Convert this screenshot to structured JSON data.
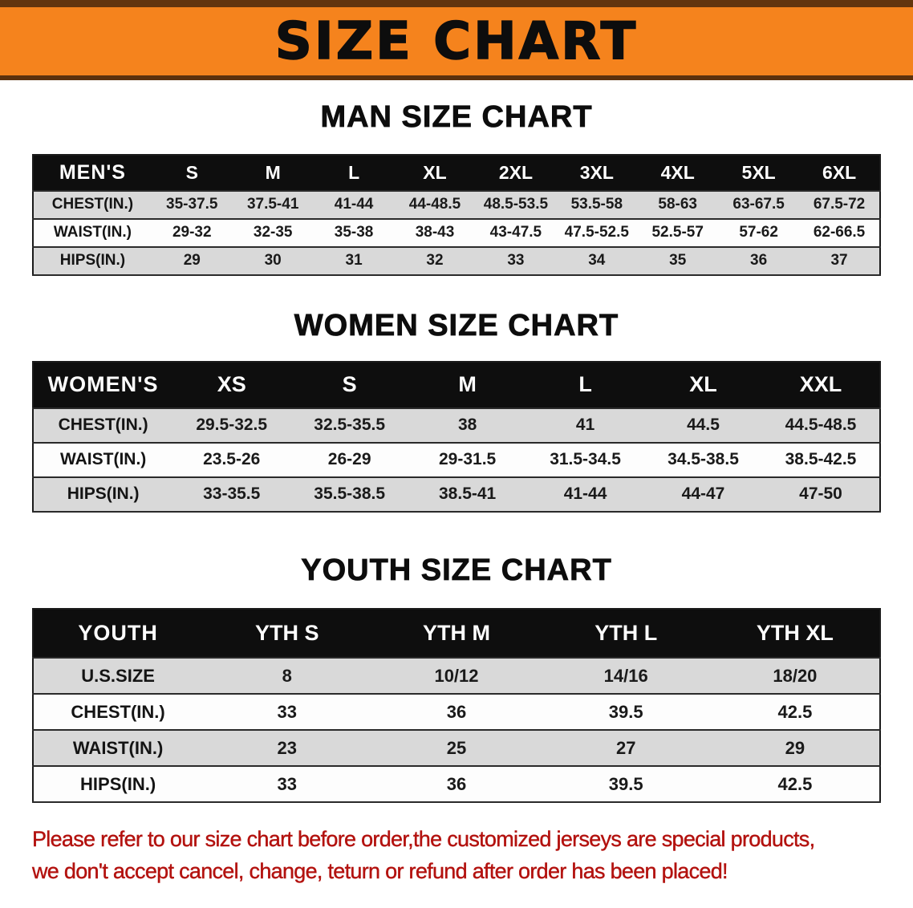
{
  "banner": {
    "title": "SIZE CHART",
    "bg_color": "#F5831D",
    "title_color": "#0D0D0D"
  },
  "sections": [
    {
      "heading": "MAN SIZE CHART",
      "table": {
        "header": [
          "MEN'S",
          "S",
          "M",
          "L",
          "XL",
          "2XL",
          "3XL",
          "4XL",
          "5XL",
          "6XL"
        ],
        "rows": [
          {
            "label": "CHEST(IN.)",
            "values": [
              "35-37.5",
              "37.5-41",
              "41-44",
              "44-48.5",
              "48.5-53.5",
              "53.5-58",
              "58-63",
              "63-67.5",
              "67.5-72"
            ]
          },
          {
            "label": "WAIST(IN.)",
            "values": [
              "29-32",
              "32-35",
              "35-38",
              "38-43",
              "43-47.5",
              "47.5-52.5",
              "52.5-57",
              "57-62",
              "62-66.5"
            ]
          },
          {
            "label": "HIPS(IN.)",
            "values": [
              "29",
              "30",
              "31",
              "32",
              "33",
              "34",
              "35",
              "36",
              "37"
            ]
          }
        ]
      }
    },
    {
      "heading": "WOMEN SIZE CHART",
      "table": {
        "header": [
          "WOMEN'S",
          "XS",
          "S",
          "M",
          "L",
          "XL",
          "XXL"
        ],
        "rows": [
          {
            "label": "CHEST(IN.)",
            "values": [
              "29.5-32.5",
              "32.5-35.5",
              "38",
              "41",
              "44.5",
              "44.5-48.5"
            ]
          },
          {
            "label": "WAIST(IN.)",
            "values": [
              "23.5-26",
              "26-29",
              "29-31.5",
              "31.5-34.5",
              "34.5-38.5",
              "38.5-42.5"
            ]
          },
          {
            "label": "HIPS(IN.)",
            "values": [
              "33-35.5",
              "35.5-38.5",
              "38.5-41",
              "41-44",
              "44-47",
              "47-50"
            ]
          }
        ]
      }
    },
    {
      "heading": "YOUTH SIZE CHART",
      "table": {
        "header": [
          "YOUTH",
          "YTH S",
          "YTH M",
          "YTH L",
          "YTH XL"
        ],
        "rows": [
          {
            "label": "U.S.SIZE",
            "values": [
              "8",
              "10/12",
              "14/16",
              "18/20"
            ]
          },
          {
            "label": "CHEST(IN.)",
            "values": [
              "33",
              "36",
              "39.5",
              "42.5"
            ]
          },
          {
            "label": "WAIST(IN.)",
            "values": [
              "23",
              "25",
              "27",
              "29"
            ]
          },
          {
            "label": "HIPS(IN.)",
            "values": [
              "33",
              "36",
              "39.5",
              "42.5"
            ]
          }
        ]
      }
    }
  ],
  "disclaimer": {
    "color": "#B3120F",
    "lines": [
      "Please refer to our size chart before order,the customized jerseys are special products,",
      "we don't accept cancel, change, teturn or refund after order has been placed!"
    ]
  }
}
